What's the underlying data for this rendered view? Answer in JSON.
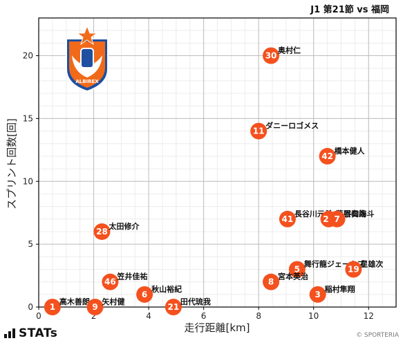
{
  "header": {
    "title": "J1 第21節 vs 福岡"
  },
  "footer": {
    "brand": "STATs",
    "copyright": "© SPORTERIA"
  },
  "colors": {
    "point": "#f4511e",
    "grid": "#d8d8d8",
    "axis": "#000000",
    "logo_blue": "#1e4fa0",
    "logo_orange": "#f06a1a"
  },
  "logo": {
    "name": "club-emblem",
    "text": "ALBIREX"
  },
  "chart_data": {
    "type": "scatter",
    "xlabel": "走行距離[km]",
    "ylabel": "スプリント回数[回]",
    "xlim": [
      0,
      13
    ],
    "ylim": [
      0,
      23
    ],
    "xticks": [
      0,
      2,
      4,
      6,
      8,
      10,
      12
    ],
    "yticks": [
      0,
      5,
      10,
      15,
      20
    ],
    "grid": true,
    "points": [
      {
        "number": "30",
        "name": "奥村仁",
        "x": 8.45,
        "y": 20
      },
      {
        "number": "11",
        "name": "ダニーロゴメス",
        "x": 8.0,
        "y": 14
      },
      {
        "number": "42",
        "name": "橋本健人",
        "x": 10.5,
        "y": 12
      },
      {
        "number": "41",
        "name": "長谷川元希",
        "x": 9.05,
        "y": 7
      },
      {
        "number": "25",
        "name": "藤原奏哉",
        "x": 10.55,
        "y": 7
      },
      {
        "number": "7",
        "name": "谷口海斗",
        "x": 10.85,
        "y": 7
      },
      {
        "number": "28",
        "name": "太田修介",
        "x": 2.3,
        "y": 6
      },
      {
        "number": "5",
        "name": "舞行龍ジェームズ",
        "x": 9.4,
        "y": 3
      },
      {
        "number": "19",
        "name": "星雄次",
        "x": 11.45,
        "y": 3
      },
      {
        "number": "8",
        "name": "宮本英治",
        "x": 8.45,
        "y": 2
      },
      {
        "number": "46",
        "name": "笠井佳祐",
        "x": 2.6,
        "y": 2
      },
      {
        "number": "6",
        "name": "秋山裕紀",
        "x": 3.85,
        "y": 1
      },
      {
        "number": "3",
        "name": "稲村隼翔",
        "x": 10.15,
        "y": 1
      },
      {
        "number": "1",
        "name": "高木善朗",
        "x": 0.5,
        "y": 0
      },
      {
        "number": "9",
        "name": "矢村健",
        "x": 2.05,
        "y": 0
      },
      {
        "number": "21",
        "name": "田代琉我",
        "x": 4.9,
        "y": 0
      }
    ]
  }
}
